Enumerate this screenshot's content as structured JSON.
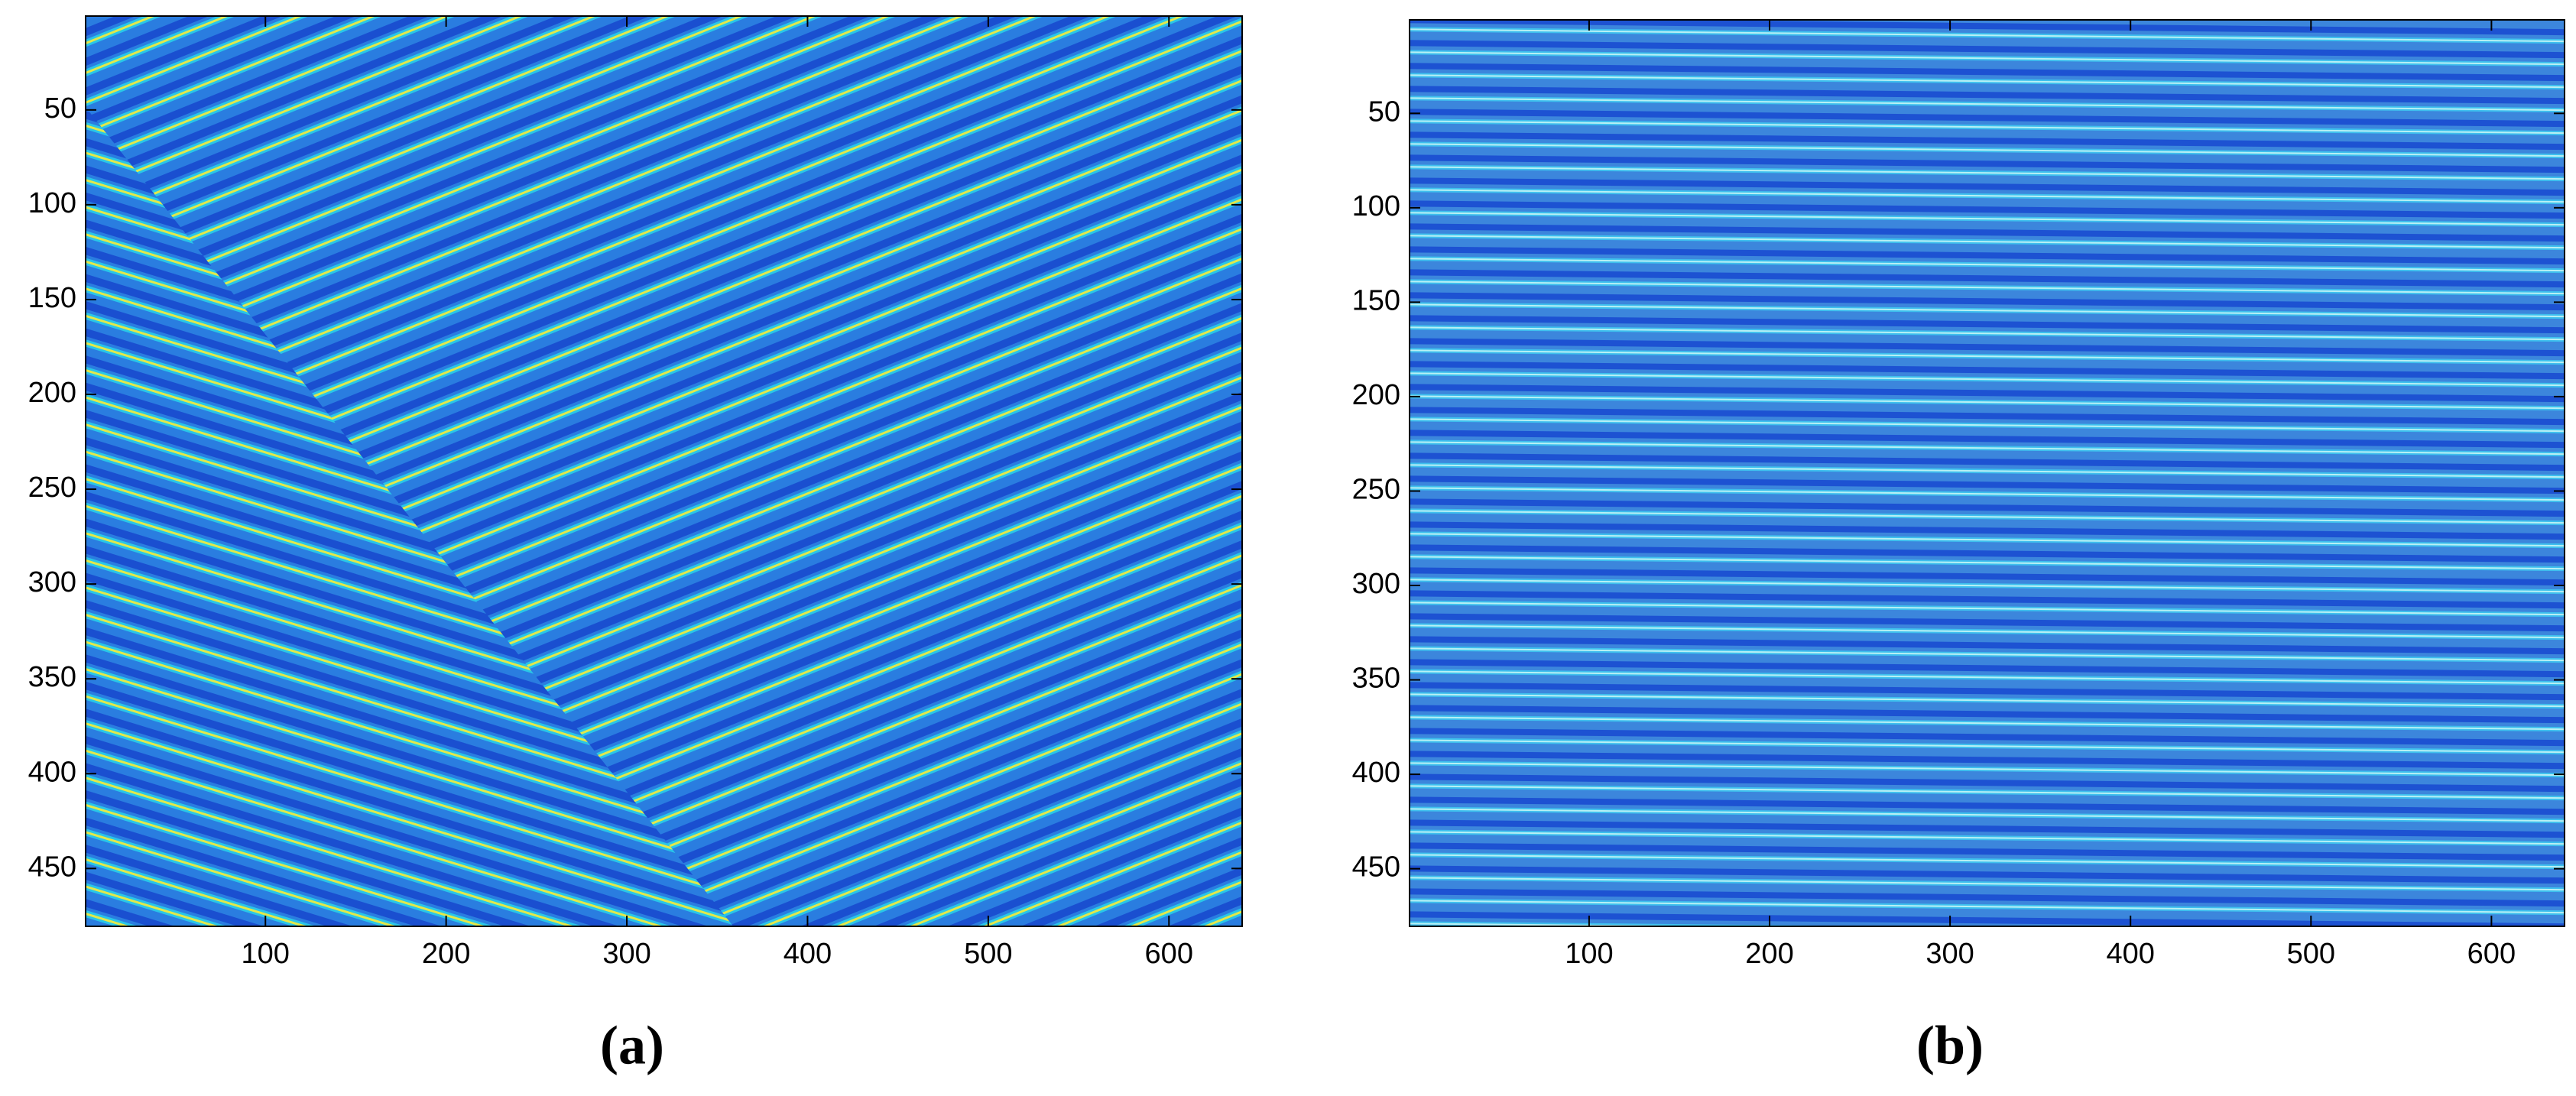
{
  "chart_data": [
    {
      "type": "image",
      "label": "(a)",
      "xlim": [
        0.5,
        640.5
      ],
      "ylim": [
        0.5,
        480.5
      ],
      "yreverse": true,
      "xticks": [
        100,
        200,
        300,
        400,
        500,
        600
      ],
      "yticks": [
        50,
        100,
        150,
        200,
        250,
        300,
        350,
        400,
        450
      ]
    },
    {
      "type": "image",
      "label": "(b)",
      "xlim": [
        0.5,
        640.5
      ],
      "ylim": [
        0.5,
        480.5
      ],
      "yreverse": true,
      "xticks": [
        100,
        200,
        300,
        400,
        500,
        600
      ],
      "yticks": [
        50,
        100,
        150,
        200,
        250,
        300,
        350,
        400,
        450
      ]
    }
  ]
}
